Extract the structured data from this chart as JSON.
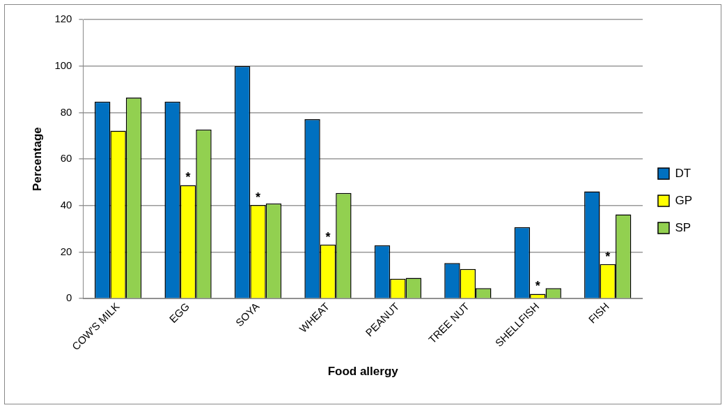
{
  "chart_data": {
    "type": "bar",
    "xlabel": "Food allergy",
    "ylabel": "Percentage",
    "categories": [
      "COW'S MILK",
      "EGG",
      "SOYA",
      "WHEAT",
      "PEANUT",
      "TREE NUT",
      "SHELLFISH",
      "FISH"
    ],
    "series": [
      {
        "name": "DT",
        "color": "#0070c0",
        "values": [
          84.7,
          84.7,
          100,
          77.1,
          22.9,
          15.3,
          30.7,
          46.1
        ]
      },
      {
        "name": "GP",
        "color": "#ffff00",
        "values": [
          72.2,
          48.8,
          40.2,
          23.2,
          8.5,
          12.7,
          2.0,
          14.8
        ]
      },
      {
        "name": "SP",
        "color": "#92d050",
        "values": [
          86.4,
          72.7,
          40.9,
          45.4,
          8.9,
          4.5,
          4.5,
          36.2
        ]
      }
    ],
    "ylim": [
      0,
      120
    ],
    "yticks": [
      0,
      20,
      40,
      60,
      80,
      100,
      120
    ],
    "grid": "y",
    "legend": "right",
    "annotations": [
      {
        "text": "*",
        "x": "EGG",
        "y": 48.8
      },
      {
        "text": "*",
        "x": "SOYA",
        "y": 40.2
      },
      {
        "text": "*",
        "x": "WHEAT",
        "y": 23.2
      },
      {
        "text": "*",
        "x": "SHELLFISH",
        "y": 2.0
      },
      {
        "text": "*",
        "x": "FISH",
        "y": 14.8
      }
    ]
  }
}
